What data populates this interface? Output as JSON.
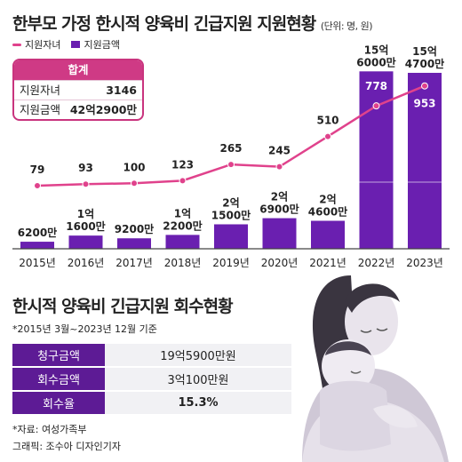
{
  "title": "한부모 가정 한시적 양육비 긴급지원 지원현황",
  "unit_note": "(단위: 명, 원)",
  "legend": {
    "count": "지원자녀",
    "amount": "지원금액"
  },
  "summary": {
    "header": "합계",
    "rows": [
      {
        "label": "지원자녀",
        "value": "3146"
      },
      {
        "label": "지원금액",
        "value": "42억2900만"
      }
    ]
  },
  "chart_data": {
    "type": "bar",
    "categories": [
      "2015년",
      "2016년",
      "2017년",
      "2018년",
      "2019년",
      "2020년",
      "2021년",
      "2022년",
      "2023년"
    ],
    "series": [
      {
        "name": "지원금액",
        "type": "bar",
        "values": [
          62000000,
          116000000,
          92000000,
          122000000,
          215000000,
          269000000,
          246000000,
          1560000000,
          1547000000
        ],
        "labels": [
          [
            "6200만"
          ],
          [
            "1억",
            "1600만"
          ],
          [
            "9200만"
          ],
          [
            "1억",
            "2200만"
          ],
          [
            "2억",
            "1500만"
          ],
          [
            "2억",
            "6900만"
          ],
          [
            "2억",
            "4600만"
          ],
          [
            "15억",
            "6000만"
          ],
          [
            "15억",
            "4700만"
          ]
        ]
      },
      {
        "name": "지원자녀",
        "type": "line",
        "values": [
          79,
          93,
          100,
          123,
          265,
          245,
          510,
          778,
          953
        ]
      }
    ],
    "colors": {
      "bar": "#6a1fb0",
      "line": "#e0428c",
      "axis": "#444444"
    }
  },
  "recovery": {
    "title": "한시적 양육비 긴급지원 회수현황",
    "period": "*2015년 3월~2023년 12월 기준",
    "rows": [
      {
        "label": "청구금액",
        "value": "19억5900만원"
      },
      {
        "label": "회수금액",
        "value": "3억100만원"
      },
      {
        "label": "회수율",
        "value": "15.3%"
      }
    ]
  },
  "source": {
    "line1": "*자료: 여성가족부",
    "line2": "그래픽: 조수아 디자인기자"
  }
}
